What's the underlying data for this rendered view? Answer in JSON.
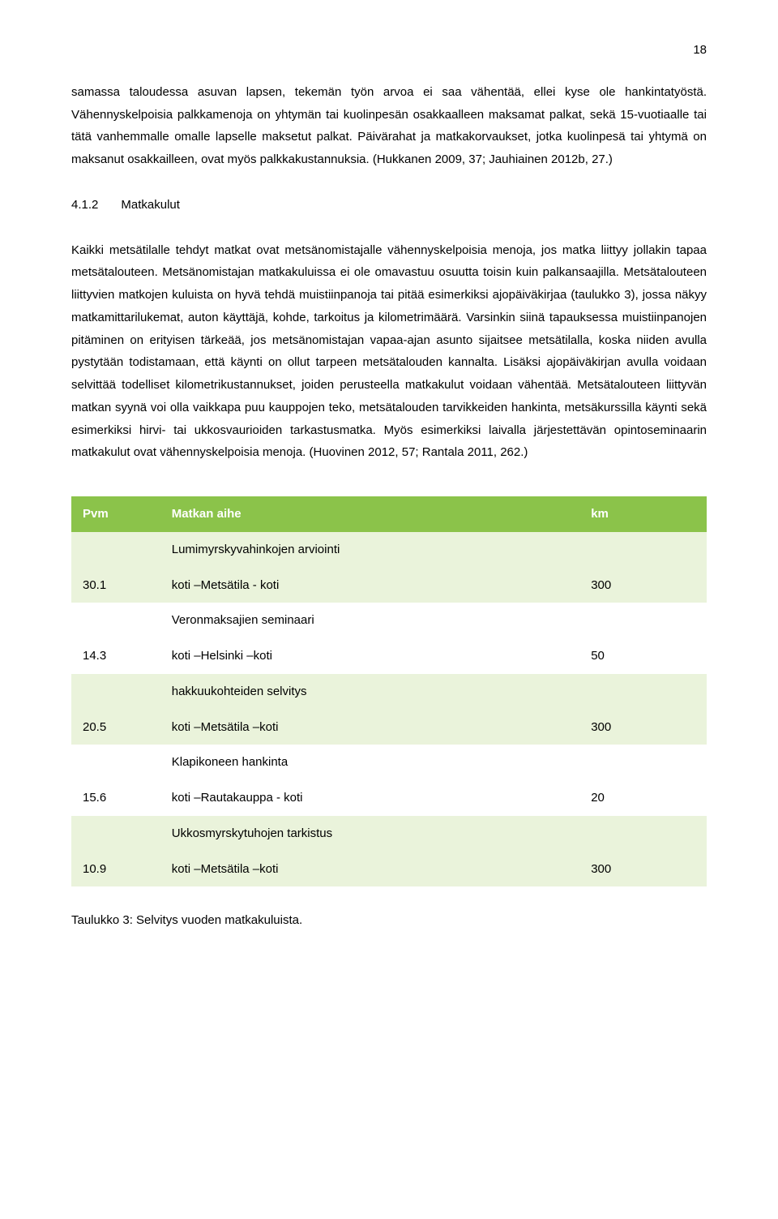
{
  "page_number": "18",
  "para1": "samassa taloudessa asuvan lapsen, tekemän työn arvoa ei saa vähentää, ellei kyse ole hankintatyöstä. Vähennyskelpoisia palkkamenoja on yhtymän tai kuolinpesän osakkaalleen maksamat palkat, sekä 15-vuotiaalle tai tätä vanhemmalle omalle lapselle maksetut palkat. Päivärahat ja matkakorvaukset, jotka kuolinpesä tai yhtymä on maksanut osakkailleen, ovat myös palkkakustannuksia. (Hukkanen 2009, 37; Jauhiainen 2012b, 27.)",
  "section": {
    "num": "4.1.2",
    "title": "Matkakulut"
  },
  "para2": "Kaikki metsätilalle tehdyt matkat ovat metsänomistajalle vähennyskelpoisia menoja, jos matka liittyy jollakin tapaa metsätalouteen. Metsänomistajan matkakuluissa ei ole omavastuu osuutta toisin kuin palkansaajilla. Metsätalouteen liittyvien matkojen kuluista on hyvä tehdä muistiinpanoja tai pitää esimerkiksi ajopäiväkirjaa (taulukko 3), jossa näkyy matkamittarilukemat, auton käyttäjä, kohde, tarkoitus ja kilometrimäärä. Varsinkin siinä tapauksessa muistiinpanojen pitäminen on erityisen tärkeää, jos metsänomistajan vapaa-ajan asunto sijaitsee metsätilalla, koska niiden avulla pystytään todistamaan, että käynti on ollut tarpeen metsätalouden kannalta. Lisäksi ajopäiväkirjan avulla voidaan selvittää todelliset kilometrikustannukset, joiden perusteella matkakulut voidaan vähentää. Metsätalouteen liittyvän matkan syynä voi olla vaikkapa puu kauppojen teko, metsätalouden tarvikkeiden hankinta, metsäkurssilla käynti sekä esimerkiksi hirvi- tai ukkosvaurioiden tarkastusmatka. Myös esimerkiksi laivalla järjestettävän opintoseminaarin matkakulut ovat vähennyskelpoisia menoja. (Huovinen 2012, 57; Rantala 2011, 262.)",
  "table": {
    "header_bg": "#8bc34a",
    "even_bg": "#eaf3db",
    "odd_bg": "#ffffff",
    "header_text_color": "#ffffff",
    "columns": [
      "Pvm",
      "Matkan aihe",
      "km"
    ],
    "col_widths": [
      "14%",
      "66%",
      "20%"
    ],
    "rows": [
      {
        "pvm": "30.1",
        "aihe_top": "Lumimyrskyvahinkojen arviointi",
        "aihe_bottom": "koti –Metsätila - koti",
        "km": "300"
      },
      {
        "pvm": "14.3",
        "aihe_top": "Veronmaksajien seminaari",
        "aihe_bottom": "koti –Helsinki –koti",
        "km": "50"
      },
      {
        "pvm": "20.5",
        "aihe_top": "hakkuukohteiden selvitys",
        "aihe_bottom": "koti –Metsätila –koti",
        "km": "300"
      },
      {
        "pvm": "15.6",
        "aihe_top": "Klapikoneen hankinta",
        "aihe_bottom": "koti –Rautakauppa - koti",
        "km": "20"
      },
      {
        "pvm": "10.9",
        "aihe_top": "Ukkosmyrskytuhojen tarkistus",
        "aihe_bottom": "koti –Metsätila –koti",
        "km": "300"
      }
    ]
  },
  "caption": "Taulukko 3: Selvitys vuoden matkakuluista."
}
